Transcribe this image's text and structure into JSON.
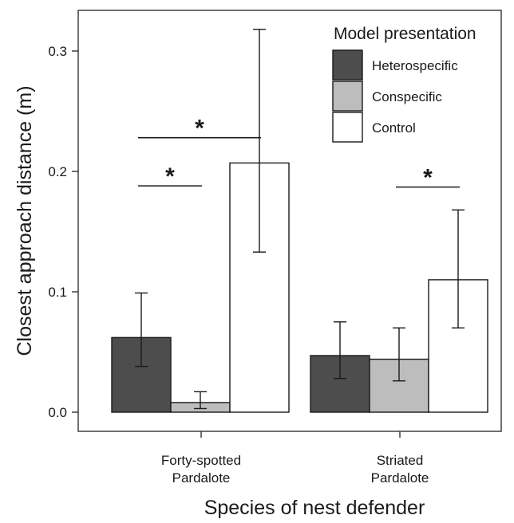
{
  "chart_data": {
    "type": "bar",
    "xlabel": "Species of nest defender",
    "ylabel": "Closest approach distance (m)",
    "ylim": [
      0,
      0.33
    ],
    "yticks": [
      0.0,
      0.1,
      0.2,
      0.3
    ],
    "ytick_labels": [
      "0.0",
      "0.1",
      "0.2",
      "0.3"
    ],
    "categories": [
      [
        "Forty-spotted",
        "Pardalote"
      ],
      [
        "Striated",
        "Pardalote"
      ]
    ],
    "legend": {
      "title": "Model presentation",
      "placement": "top-right"
    },
    "series": [
      {
        "name": "Heterospecific",
        "color": "#4d4d4d",
        "values": [
          0.062,
          0.047
        ],
        "err_low": [
          0.038,
          0.028
        ],
        "err_high": [
          0.099,
          0.075
        ]
      },
      {
        "name": "Conspecific",
        "color": "#bdbdbd",
        "values": [
          0.008,
          0.044
        ],
        "err_low": [
          0.003,
          0.026
        ],
        "err_high": [
          0.017,
          0.07
        ]
      },
      {
        "name": "Control",
        "color": "#ffffff",
        "values": [
          0.207,
          0.11
        ],
        "err_low": [
          0.133,
          0.07
        ],
        "err_high": [
          0.318,
          0.168
        ]
      }
    ],
    "significance": [
      {
        "category": 0,
        "from": 0,
        "to": 1,
        "label": "*",
        "y": 0.188
      },
      {
        "category": 0,
        "from": 0,
        "to": 2,
        "label": "*",
        "y": 0.228
      },
      {
        "category": 1,
        "from": 1,
        "to": 2,
        "label": "*",
        "y": 0.187
      }
    ]
  }
}
